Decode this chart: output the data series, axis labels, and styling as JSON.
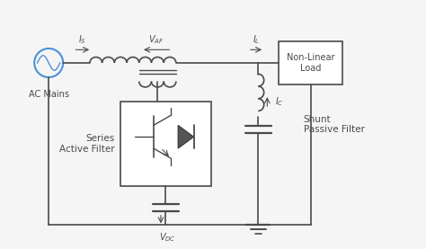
{
  "bg_color": "#f5f5f5",
  "line_color": "#4a4a4a",
  "blue_color": "#4a90d9",
  "labels": {
    "ac_mains": "AC Mains",
    "series_filter": "Series\nActive Filter",
    "shunt_filter": "Shunt\nPassive Filter",
    "nonlinear_load": "Non-Linear\nLoad"
  }
}
